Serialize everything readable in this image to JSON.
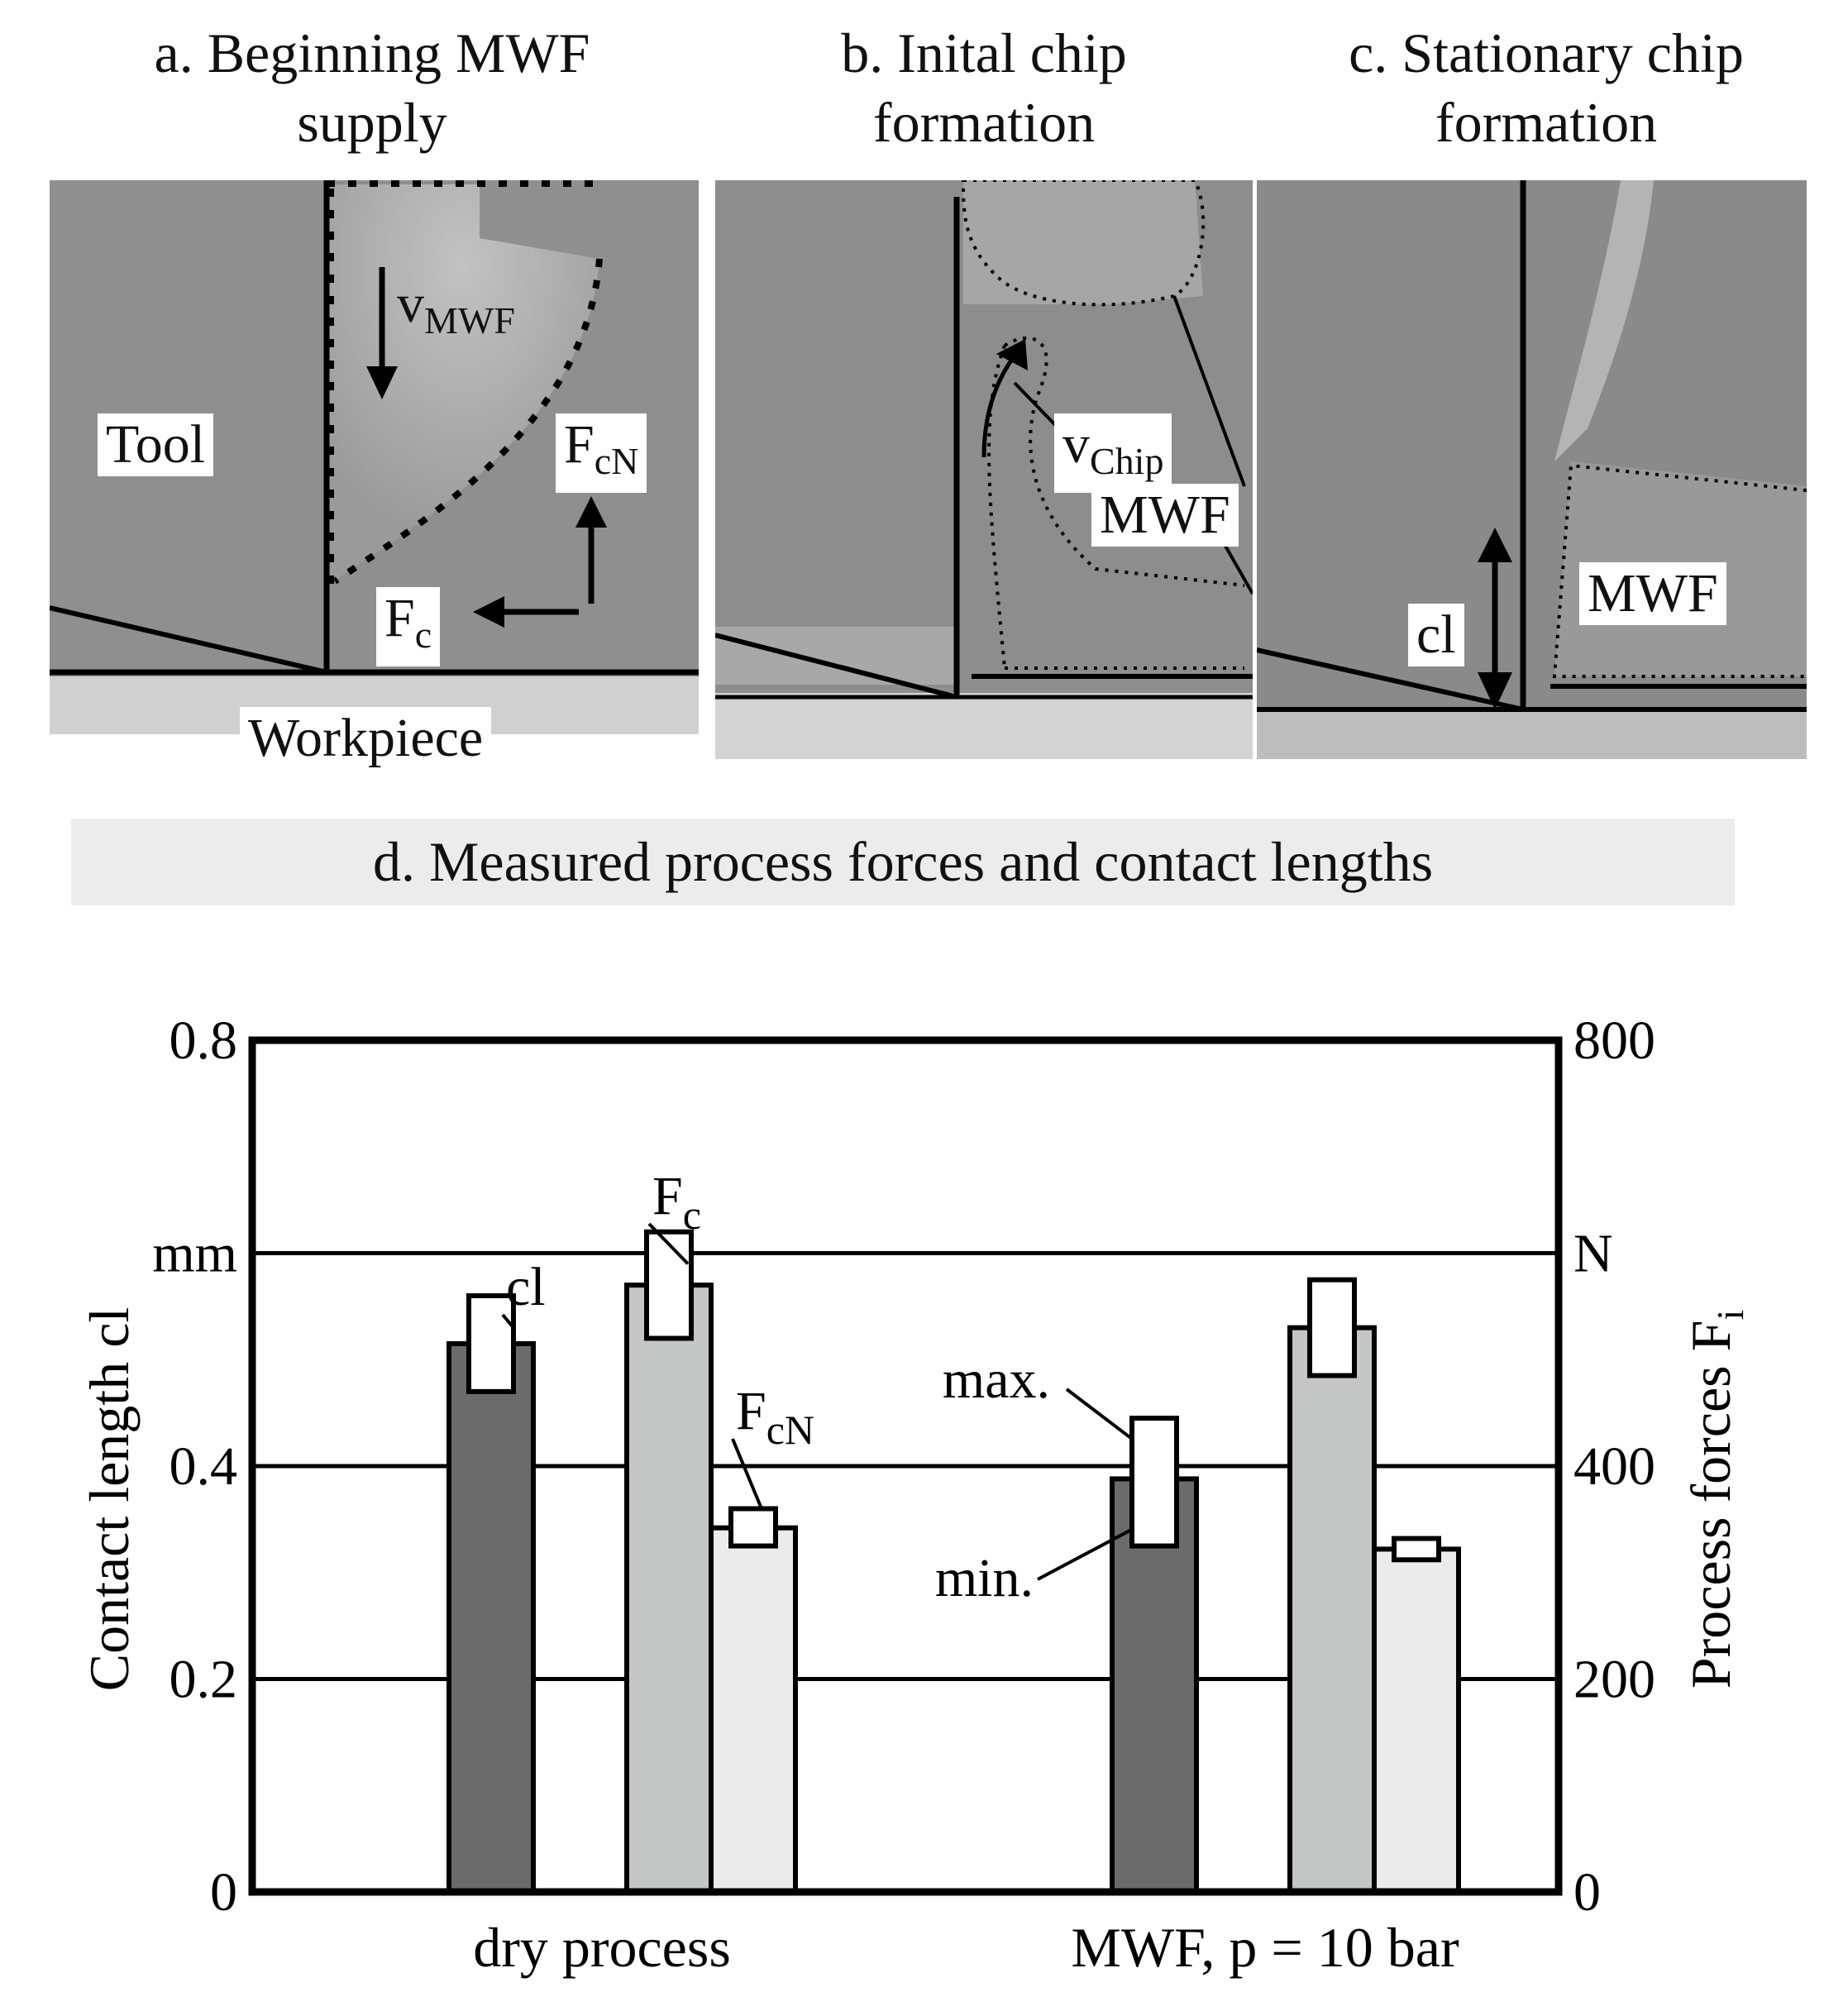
{
  "panels": [
    {
      "title": "a. Beginning MWF\nsupply",
      "labels": {
        "tool": "Tool",
        "velocity_main": "v",
        "velocity_sub": "MWF",
        "normal_force_main": "F",
        "normal_force_sub": "cN",
        "cutting_force_main": "F",
        "cutting_force_sub": "c",
        "workpiece": "Workpiece"
      }
    },
    {
      "title": "b. Inital chip\nformation",
      "labels": {
        "velocity_main": "v",
        "velocity_sub": "Chip",
        "fluid": "MWF"
      }
    },
    {
      "title": "c. Stationary chip\nformation",
      "labels": {
        "contact_length": "cl",
        "fluid": "MWF"
      }
    }
  ],
  "section_title": "d. Measured process forces and contact lengths",
  "chart_data": {
    "type": "bar",
    "categories": [
      "dry process",
      "MWF, p = 10 bar"
    ],
    "left_axis": {
      "label": "Contact length cl",
      "unit": "mm",
      "ticks": [
        "0",
        "0.2",
        "0.4",
        "0.8"
      ],
      "ylim": [
        0,
        0.8
      ]
    },
    "right_axis": {
      "label": "Process forces F",
      "label_sub": "i",
      "unit": "N",
      "ticks": [
        "0",
        "200",
        "400",
        "800"
      ],
      "ylim": [
        0,
        800
      ]
    },
    "series": [
      {
        "name": "cl",
        "axis": "left",
        "color": "#6b6b6b",
        "values": [
          0.515,
          0.388
        ],
        "min": [
          0.47,
          0.325
        ],
        "max": [
          0.56,
          0.445
        ]
      },
      {
        "name": "F",
        "name_sub": "c",
        "axis": "right",
        "color": "#c4c6c6",
        "values": [
          570,
          530
        ],
        "min": [
          520,
          485
        ],
        "max": [
          620,
          575
        ]
      },
      {
        "name": "F",
        "name_sub": "cN",
        "axis": "right",
        "color": "#ebebeb",
        "values": [
          342,
          322
        ],
        "min": [
          325,
          312
        ],
        "max": [
          360,
          332
        ]
      }
    ],
    "annotations": {
      "max": "max.",
      "min": "min."
    },
    "grid": true
  }
}
